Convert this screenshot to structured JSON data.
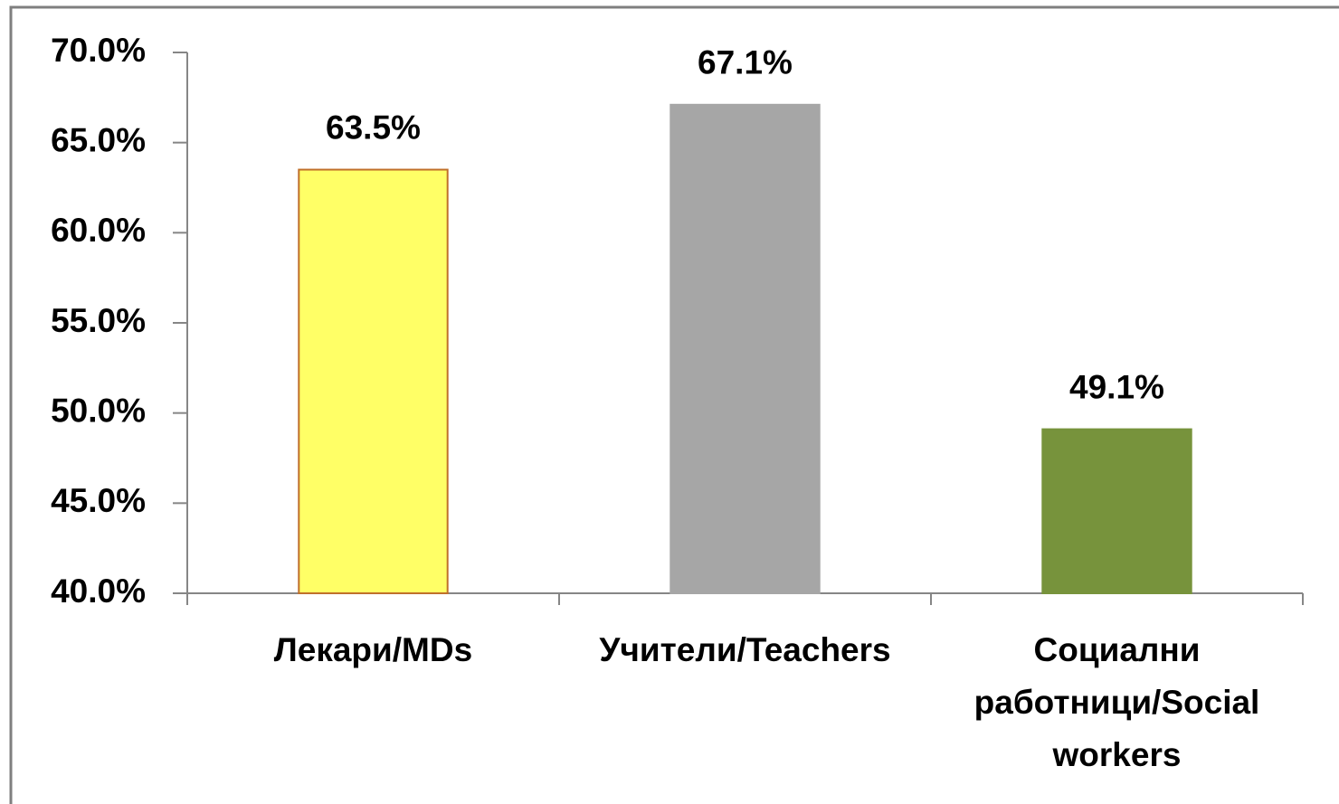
{
  "chart_data": {
    "type": "bar",
    "categories": [
      "Лекари/MDs",
      "Учители/Teachers",
      "Социални работници/Social workers"
    ],
    "values": [
      63.5,
      67.1,
      49.1
    ],
    "value_labels": [
      "63.5%",
      "67.1%",
      "49.1%"
    ],
    "colors": [
      "#ffff66",
      "#a6a6a6",
      "#77933c"
    ],
    "ylim": [
      40,
      70
    ],
    "yticks": [
      {
        "value": 40,
        "label": "40.0%"
      },
      {
        "value": 45,
        "label": "45.0%"
      },
      {
        "value": 50,
        "label": "50.0%"
      },
      {
        "value": 55,
        "label": "55.0%"
      },
      {
        "value": 60,
        "label": "60.0%"
      },
      {
        "value": 65,
        "label": "65.0%"
      },
      {
        "value": 70,
        "label": "70.0%"
      }
    ],
    "grid": false
  }
}
